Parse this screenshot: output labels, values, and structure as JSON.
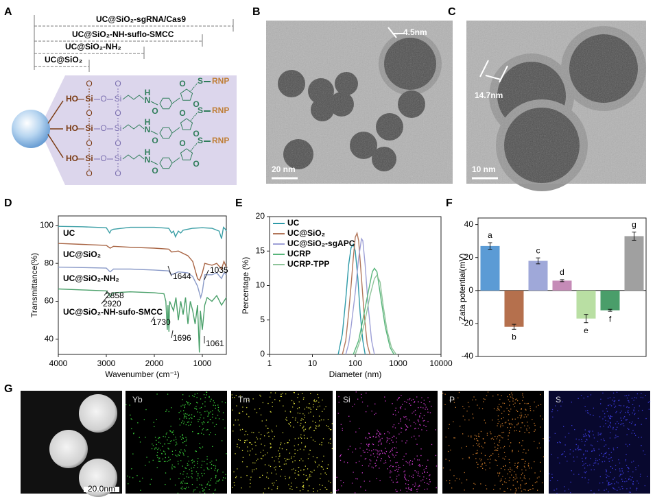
{
  "panel_labels": [
    "A",
    "B",
    "C",
    "D",
    "E",
    "F",
    "G"
  ],
  "panel_a": {
    "constructs": [
      "UC@SiO₂-sgRNA/Cas9",
      "UC@SiO₂-NH-suflo-SMCC",
      "UC@SiO₂-NH₂",
      "UC@SiO₂"
    ],
    "schematic": {
      "hydroxyl": "HO",
      "silicon": "Si",
      "oxygen": "O",
      "nitrogen": "N",
      "hydrogen": "H",
      "sulfur": "S",
      "payload": "RNP"
    }
  },
  "panel_b": {
    "scale": "20 nm",
    "shell": "4.5nm"
  },
  "panel_c": {
    "scale": "10 nm",
    "shell": "14.7nm"
  },
  "chart_data": [
    {
      "type": "line",
      "x_label": "Wavenumber (cm⁻¹)",
      "y_label": "Transmittance(%)",
      "xlim": [
        4000,
        500
      ],
      "xticks": [
        4000,
        3000,
        2000,
        1000
      ],
      "ylim": [
        32,
        105
      ],
      "yticks": [
        40,
        60,
        80,
        100
      ],
      "series": [
        {
          "name": "UC",
          "color": "#3a9ea5",
          "x": [
            4000,
            3500,
            3000,
            2930,
            2900,
            2850,
            2500,
            2000,
            1700,
            1640,
            1600,
            1560,
            1500,
            1450,
            1400,
            1200,
            1000,
            800,
            650,
            600,
            560,
            520,
            500
          ],
          "values": [
            99.5,
            99.3,
            98.8,
            96,
            97.5,
            98,
            99,
            99,
            98.5,
            96,
            97,
            94,
            97,
            96,
            97.5,
            98.5,
            98.8,
            98.5,
            97,
            93,
            99,
            98,
            97
          ]
        },
        {
          "name": "UC@SiO₂",
          "color": "#a86443",
          "x": [
            4000,
            3500,
            3000,
            2920,
            2850,
            2500,
            2000,
            1700,
            1640,
            1500,
            1300,
            1200,
            1100,
            1060,
            1000,
            950,
            800,
            700,
            600,
            550,
            500
          ],
          "values": [
            90.5,
            90,
            89.5,
            88,
            89,
            88.5,
            88,
            87.5,
            86,
            86.5,
            84,
            81,
            72,
            71,
            75,
            80,
            79,
            80,
            77,
            81,
            78
          ]
        },
        {
          "name": "UC@SiO₂-NH₂",
          "color": "#8a9ac8",
          "x": [
            4000,
            3500,
            3000,
            2920,
            2850,
            2500,
            2000,
            1700,
            1644,
            1500,
            1300,
            1200,
            1100,
            1035,
            1000,
            950,
            800,
            700,
            600,
            550,
            500
          ],
          "values": [
            78,
            77.8,
            77.5,
            75.5,
            77,
            77,
            76.5,
            76,
            74,
            75.5,
            75,
            73,
            68,
            62,
            65,
            74,
            74,
            75,
            72,
            75,
            74
          ]
        },
        {
          "name": "UC@SiO₂-NH-sufo-SMCC",
          "color": "#4aa06a",
          "x": [
            4000,
            3500,
            3000,
            2920,
            2858,
            2500,
            2000,
            1800,
            1760,
            1730,
            1715,
            1696,
            1680,
            1600,
            1550,
            1500,
            1450,
            1400,
            1350,
            1300,
            1250,
            1200,
            1150,
            1100,
            1061,
            1040,
            1000,
            950,
            900,
            800,
            700,
            600,
            500
          ],
          "values": [
            66.5,
            66,
            65.5,
            62.5,
            64.5,
            65,
            64.5,
            64,
            60,
            45,
            58,
            44,
            60,
            55,
            62,
            50,
            60,
            53,
            62,
            48,
            60,
            55,
            48,
            58,
            33,
            55,
            45,
            58,
            62,
            60,
            63,
            58,
            62
          ]
        }
      ],
      "annotations": [
        "1644",
        "1035",
        "2858",
        "2920",
        "1730",
        "1696",
        "1061"
      ]
    },
    {
      "type": "line",
      "x_label": "Diameter (nm)",
      "y_label": "Percentage (%)",
      "xscale": "log",
      "xlim": [
        1,
        10000
      ],
      "xticks": [
        1,
        10,
        100,
        1000,
        10000
      ],
      "ylim": [
        0,
        20
      ],
      "yticks": [
        0,
        5,
        10,
        15,
        20
      ],
      "legend": "upper left",
      "series": [
        {
          "name": "UC",
          "color": "#2e9aa8",
          "x": [
            40,
            50,
            60,
            70,
            80,
            90,
            100,
            115,
            130,
            150,
            170
          ],
          "values": [
            0,
            3,
            8,
            13,
            15.5,
            16,
            15,
            11,
            6,
            2,
            0
          ]
        },
        {
          "name": "UC@SiO₂",
          "color": "#b2765a",
          "x": [
            50,
            60,
            70,
            80,
            90,
            100,
            110,
            120,
            140,
            160,
            190,
            220
          ],
          "values": [
            0,
            2,
            6,
            10,
            14,
            17,
            17.6,
            16.5,
            11,
            6,
            1.5,
            0
          ]
        },
        {
          "name": "UC@SiO₂-sgAPC",
          "color": "#9d9fd6",
          "x": [
            60,
            70,
            80,
            100,
            120,
            140,
            150,
            170,
            200,
            240,
            280
          ],
          "values": [
            0,
            1.5,
            4,
            9,
            14,
            16.8,
            16.5,
            13,
            7,
            2,
            0
          ]
        },
        {
          "name": "UCRP",
          "color": "#57b57a",
          "x": [
            90,
            120,
            150,
            200,
            250,
            280,
            320,
            400,
            500,
            650,
            800
          ],
          "values": [
            0,
            2,
            5,
            9,
            12,
            12.5,
            12,
            8,
            4,
            1,
            0
          ]
        },
        {
          "name": "UCRP-TPP",
          "color": "#8fc49a",
          "x": [
            100,
            130,
            170,
            220,
            280,
            320,
            380,
            450,
            550,
            700,
            900
          ],
          "values": [
            0,
            2,
            5,
            8.5,
            11,
            11.5,
            10.5,
            7,
            3.5,
            1,
            0
          ]
        }
      ]
    },
    {
      "type": "bar",
      "y_label": "Zata potential(mV)",
      "categories": [
        "a",
        "b",
        "c",
        "d",
        "e",
        "f",
        "g"
      ],
      "values": [
        27,
        -22,
        18,
        6,
        -17,
        -12,
        33
      ],
      "errors": [
        2,
        1.5,
        1.8,
        0.6,
        2.5,
        0.6,
        2.5
      ],
      "colors": [
        "#5b9bd5",
        "#b5704d",
        "#9fa8d9",
        "#c58bb7",
        "#b9dfa3",
        "#4a9e6a",
        "#a0a0a0"
      ],
      "ylim": [
        -40,
        44
      ],
      "yticks": [
        -40,
        -20,
        0,
        20,
        40
      ]
    }
  ],
  "panel_g": {
    "scale": "20.0nm",
    "elements": [
      "Yb",
      "Tm",
      "Si",
      "P",
      "S"
    ]
  }
}
